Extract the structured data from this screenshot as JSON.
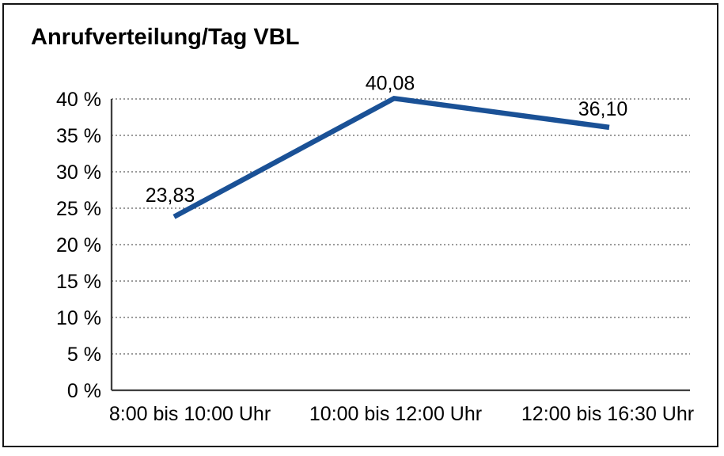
{
  "chart_data": {
    "type": "line",
    "title": "Anrufverteilung/Tag VBL",
    "categories": [
      "8:00 bis 10:00 Uhr",
      "10:00 bis 12:00 Uhr",
      "12:00 bis 16:30 Uhr"
    ],
    "values": [
      23.83,
      40.08,
      36.1
    ],
    "point_labels": [
      "23,83",
      "40,08",
      "36,10"
    ],
    "xlabel": "",
    "ylabel": "",
    "ylim": [
      0,
      40
    ],
    "ytick_step": 5,
    "ytick_labels": [
      "0 %",
      "5 %",
      "10 %",
      "15 %",
      "20 %",
      "25 %",
      "30 %",
      "35 %",
      "40 %"
    ],
    "grid": "horizontal-dotted",
    "legend": "none"
  },
  "colors": {
    "line": "#1a5196",
    "axis": "#3f3f3f",
    "grid": "#7a7a7a",
    "text": "#000000",
    "border": "#141414",
    "background": "#ffffff"
  }
}
